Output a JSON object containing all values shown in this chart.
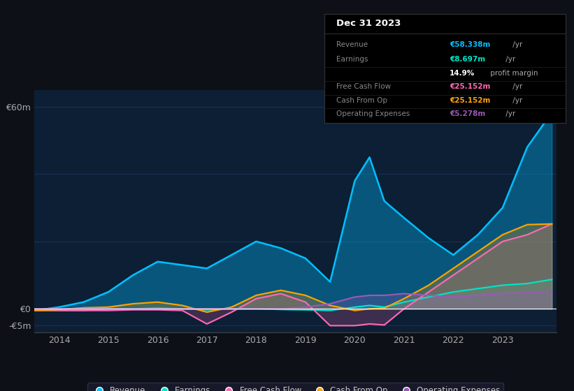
{
  "bg_color": "#0d1117",
  "plot_bg_color": "#0d1f35",
  "grid_color": "#1e3a5f",
  "years": [
    2013.5,
    2014,
    2014.5,
    2015,
    2015.5,
    2016,
    2016.5,
    2017,
    2017.5,
    2018,
    2018.5,
    2019,
    2019.5,
    2020,
    2020.3,
    2020.6,
    2021,
    2021.5,
    2022,
    2022.5,
    2023,
    2023.5,
    2024.0
  ],
  "revenue": [
    -0.5,
    0.5,
    2.0,
    5.0,
    10.0,
    14.0,
    13.0,
    12.0,
    16.0,
    20.0,
    18.0,
    15.0,
    8.0,
    38.0,
    45.0,
    32.0,
    27.0,
    21.0,
    16.0,
    22.0,
    30.0,
    48.0,
    58.3
  ],
  "earnings": [
    -0.5,
    -0.5,
    -0.5,
    0.0,
    0.0,
    0.2,
    0.0,
    -0.3,
    0.0,
    0.0,
    -0.2,
    -0.3,
    -0.5,
    0.5,
    1.0,
    0.5,
    2.0,
    3.5,
    5.0,
    6.0,
    7.0,
    7.5,
    8.7
  ],
  "fcf": [
    -0.5,
    -0.5,
    -0.5,
    -0.5,
    -0.3,
    -0.3,
    -0.5,
    -4.5,
    -1.0,
    3.0,
    4.5,
    2.0,
    -5.0,
    -5.0,
    -4.5,
    -4.8,
    0.0,
    5.0,
    10.0,
    15.0,
    20.0,
    22.0,
    25.2
  ],
  "cashfromop": [
    -0.5,
    -0.2,
    0.3,
    0.5,
    1.5,
    2.0,
    1.0,
    -1.0,
    0.5,
    4.0,
    5.5,
    4.0,
    1.0,
    -0.5,
    0.0,
    0.2,
    3.0,
    7.0,
    12.0,
    17.0,
    22.0,
    25.0,
    25.2
  ],
  "opex": [
    0.0,
    0.0,
    0.0,
    0.0,
    0.0,
    0.0,
    0.0,
    0.0,
    0.0,
    0.0,
    0.0,
    0.5,
    1.5,
    3.5,
    4.0,
    4.0,
    4.5,
    4.0,
    3.5,
    4.0,
    4.5,
    4.8,
    5.3
  ],
  "ylim": [
    -7,
    65
  ],
  "legend": [
    {
      "label": "Revenue",
      "color": "#00bfff"
    },
    {
      "label": "Earnings",
      "color": "#00e5cc"
    },
    {
      "label": "Free Cash Flow",
      "color": "#ff69b4"
    },
    {
      "label": "Cash From Op",
      "color": "#ffa500"
    },
    {
      "label": "Operating Expenses",
      "color": "#9b59b6"
    }
  ],
  "table_rows": [
    {
      "label": "Revenue",
      "label_color": "#888888",
      "value": "€58.338m",
      "value_color": "#00bfff",
      "suffix": " /yr",
      "divider": true
    },
    {
      "label": "Earnings",
      "label_color": "#888888",
      "value": "€8.697m",
      "value_color": "#00e5cc",
      "suffix": " /yr",
      "divider": false
    },
    {
      "label": "",
      "label_color": "#888888",
      "value": "14.9%",
      "value_color": "#ffffff",
      "suffix": " profit margin",
      "divider": true
    },
    {
      "label": "Free Cash Flow",
      "label_color": "#888888",
      "value": "€25.152m",
      "value_color": "#ff69b4",
      "suffix": " /yr",
      "divider": true
    },
    {
      "label": "Cash From Op",
      "label_color": "#888888",
      "value": "€25.152m",
      "value_color": "#ffa500",
      "suffix": " /yr",
      "divider": true
    },
    {
      "label": "Operating Expenses",
      "label_color": "#888888",
      "value": "€5.278m",
      "value_color": "#9b59b6",
      "suffix": " /yr",
      "divider": true
    }
  ]
}
